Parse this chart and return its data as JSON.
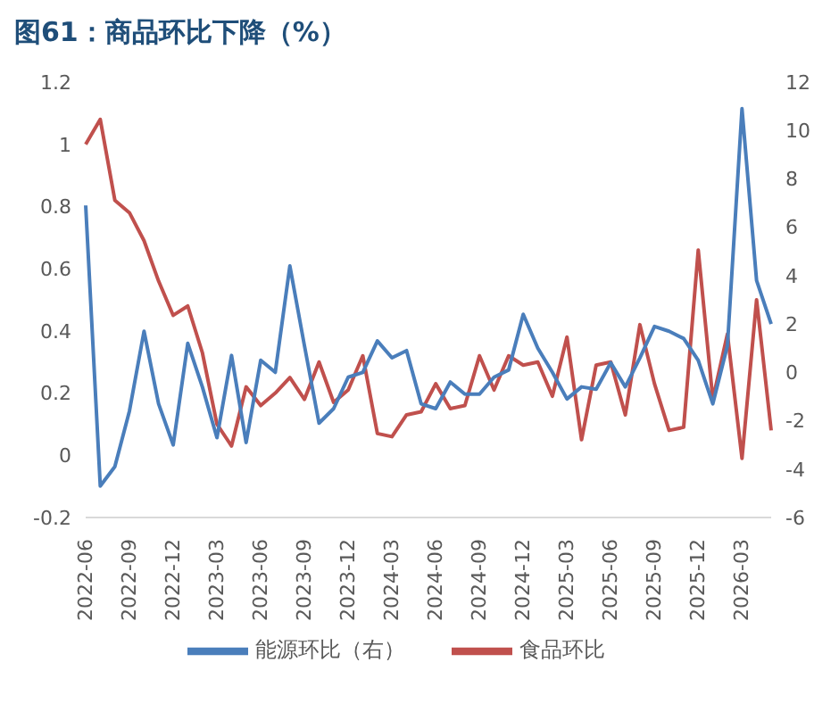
{
  "chart_data": {
    "type": "line",
    "title": "图61：商品环比下降（%）",
    "categories": [
      "2022-06",
      null,
      null,
      "2022-09",
      null,
      null,
      "2022-12",
      null,
      null,
      "2023-03",
      null,
      null,
      "2023-06",
      null,
      null,
      "2023-09",
      null,
      null,
      "2023-12",
      null,
      null,
      "2024-03",
      null,
      null,
      "2024-06",
      null,
      null,
      "2024-09",
      null,
      null,
      "2024-12",
      null,
      null,
      "2025-03",
      null,
      null,
      "2025-06",
      null,
      null,
      "2025-09",
      null,
      null,
      "2025-12",
      null,
      null,
      "2026-03",
      null,
      null
    ],
    "series": [
      {
        "name": "食品环比",
        "color": "#c0504d",
        "values": [
          1.0,
          1.08,
          0.82,
          0.78,
          0.69,
          0.56,
          0.45,
          0.48,
          0.33,
          0.1,
          0.03,
          0.22,
          0.16,
          0.2,
          0.25,
          0.18,
          0.3,
          0.17,
          0.21,
          0.32,
          0.07,
          0.06,
          0.13,
          0.14,
          0.23,
          0.15,
          0.16,
          0.32,
          0.21,
          0.32,
          0.29,
          0.3,
          0.19,
          0.38,
          0.05,
          0.29,
          0.3,
          0.13,
          0.42,
          0.23,
          0.08,
          0.09,
          0.66,
          0.18,
          0.39,
          -0.01,
          0.5,
          0.08
        ]
      },
      {
        "name": "能源环比（右）",
        "color": "#4a7ebb",
        "axis": "y2",
        "values": [
          6.9,
          -4.7,
          -3.9,
          -1.6,
          1.7,
          -1.3,
          -3.0,
          1.2,
          -0.6,
          -2.7,
          0.7,
          -2.9,
          0.5,
          0.0,
          4.4,
          1.1,
          -2.1,
          -1.5,
          -0.2,
          0.0,
          1.3,
          0.6,
          0.9,
          -1.3,
          -1.5,
          -0.4,
          -0.9,
          -0.9,
          -0.2,
          0.1,
          2.4,
          1.0,
          0.0,
          -1.1,
          -0.6,
          -0.7,
          0.4,
          -0.6,
          0.6,
          1.9,
          1.7,
          1.4,
          0.5,
          -1.3,
          1.1,
          10.9,
          3.8,
          2.0
        ]
      }
    ],
    "ylim": [
      -0.2,
      1.2
    ],
    "yticks": [
      -0.2,
      0,
      0.2,
      0.4,
      0.6,
      0.8,
      1,
      1.2
    ],
    "y2lim": [
      -6,
      12
    ],
    "y2ticks": [
      -6,
      -4,
      -2,
      0,
      2,
      4,
      6,
      8,
      10,
      12
    ],
    "legend": "bottom",
    "grid": false,
    "marker": "none",
    "line_style": "solid"
  }
}
